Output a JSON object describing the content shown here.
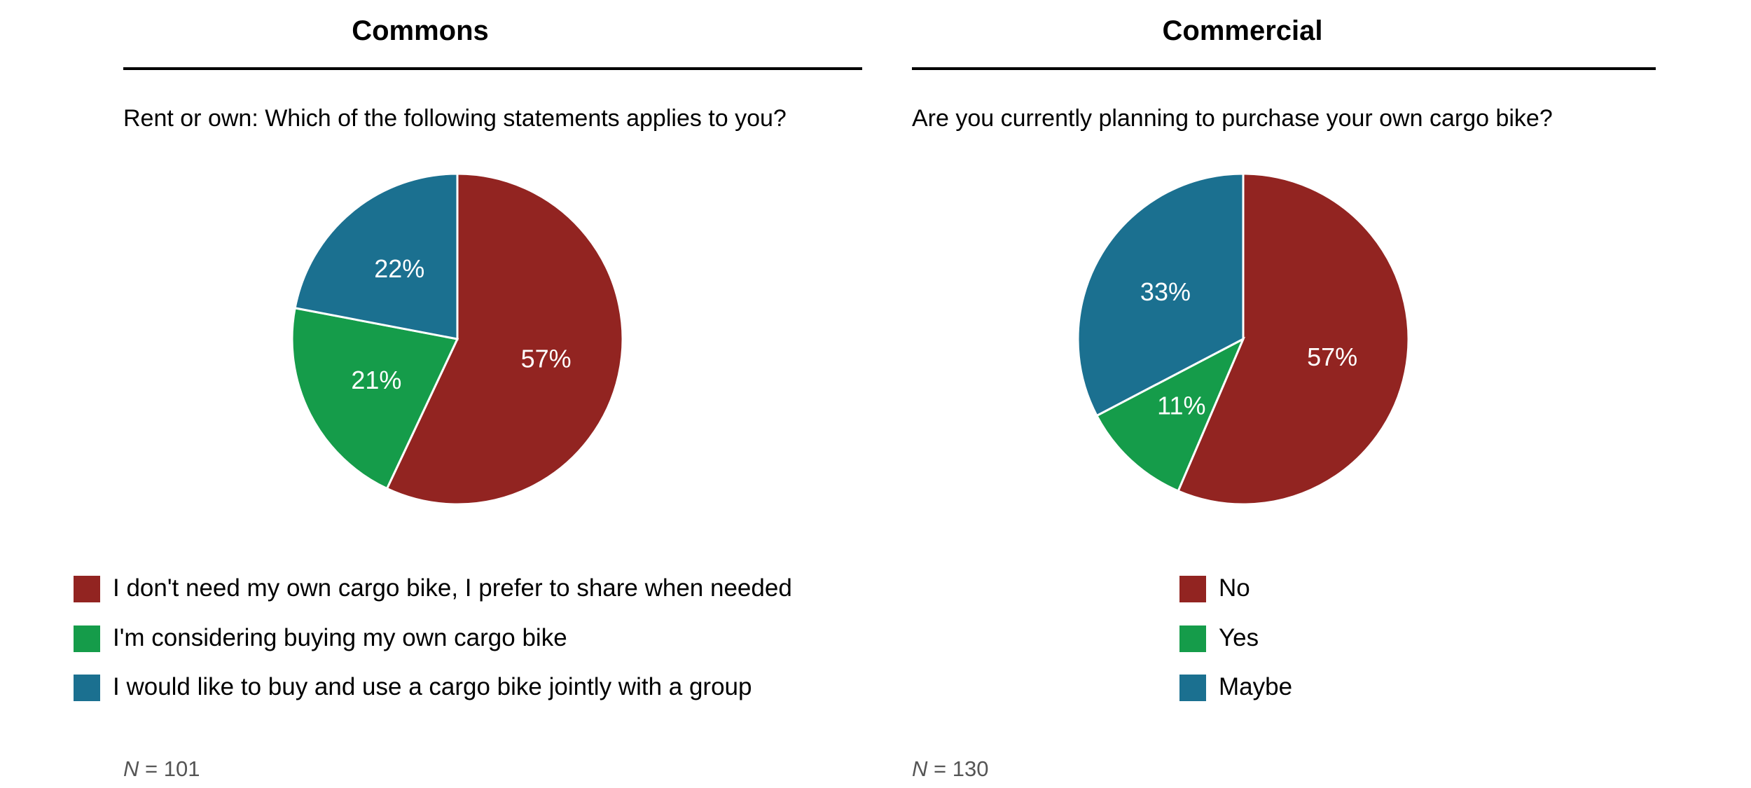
{
  "chart_data": [
    {
      "type": "pie",
      "title": "Commons",
      "subtitle": "Rent or own: Which of the following statements applies to you?",
      "categories": [
        "I don't need my own cargo bike, I prefer to share when needed",
        "I'm considering buying my own cargo bike",
        "I would like to buy and use a cargo bike jointly with a group"
      ],
      "values": [
        57,
        21,
        22
      ],
      "labels": [
        "57%",
        "21%",
        "22%"
      ],
      "colors": [
        "#922421",
        "#159c4a",
        "#1b7090"
      ],
      "legend_position": "bottom",
      "n_prefix": "N",
      "n_value": "= 101"
    },
    {
      "type": "pie",
      "title": "Commercial",
      "subtitle": "Are you currently planning to purchase your own cargo bike?",
      "categories": [
        "No",
        "Yes",
        "Maybe"
      ],
      "values": [
        57,
        11,
        33
      ],
      "labels": [
        "57%",
        "11%",
        "33%"
      ],
      "colors": [
        "#922421",
        "#159c4a",
        "#1b7090"
      ],
      "legend_position": "bottom",
      "n_prefix": "N",
      "n_value": "= 130"
    }
  ]
}
